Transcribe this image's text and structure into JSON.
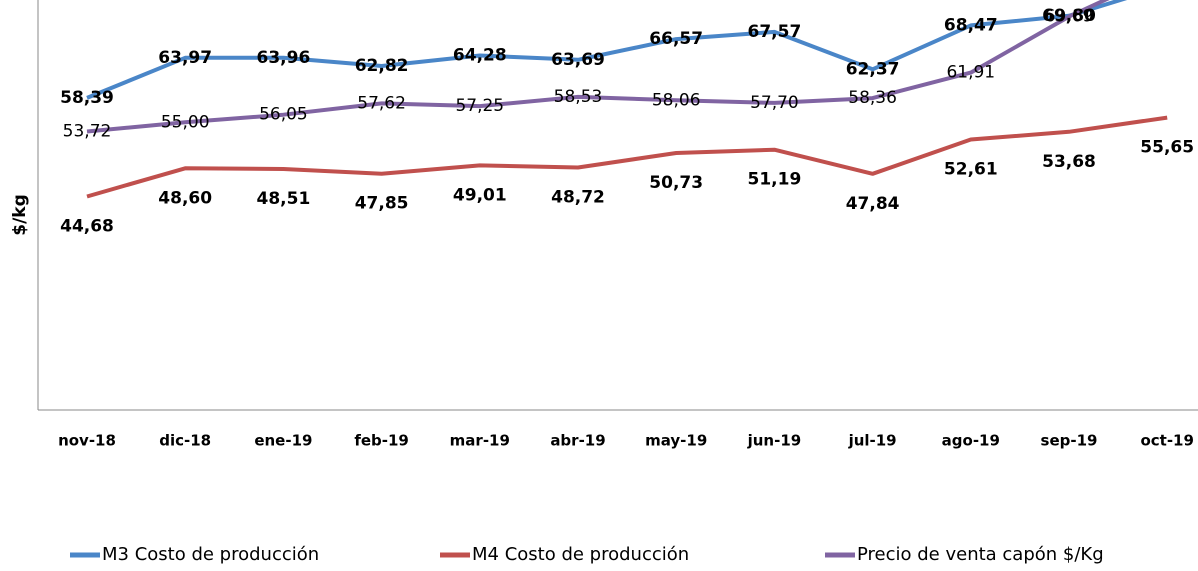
{
  "chart_data": {
    "type": "line",
    "y_label": "$/kg",
    "categories": [
      "nov-18",
      "dic-18",
      "ene-19",
      "feb-19",
      "mar-19",
      "abr-19",
      "may-19",
      "jun-19",
      "jul-19",
      "ago-19",
      "sep-19",
      "oct-19"
    ],
    "ylim": [
      15,
      72
    ],
    "series": [
      {
        "name": "M3 Costo de producción",
        "color": "#4a86c8",
        "values": [
          58.39,
          63.97,
          63.96,
          62.82,
          64.28,
          63.69,
          66.57,
          67.57,
          62.37,
          68.47,
          69.8,
          74
        ],
        "value_labels": [
          "58,39",
          "63,97",
          "63,96",
          "62,82",
          "64,28",
          "63,69",
          "66,57",
          "67,57",
          "62,37",
          "68,47",
          "69,80",
          null
        ]
      },
      {
        "name": "M4 Costo de producción",
        "color": "#c0504d",
        "values": [
          44.68,
          48.6,
          48.51,
          47.85,
          49.01,
          48.72,
          50.73,
          51.19,
          47.84,
          52.61,
          53.68,
          55.65
        ],
        "value_labels": [
          "44,68",
          "48,60",
          "48,51",
          "47,85",
          "49,01",
          "48,72",
          "50,73",
          "51,19",
          "47,84",
          "52,61",
          "53,68",
          "55,65"
        ]
      },
      {
        "name": "Precio de venta capón $/Kg",
        "color": "#8064a2",
        "values": [
          53.72,
          55.0,
          56.05,
          57.62,
          57.25,
          58.53,
          58.06,
          57.7,
          58.36,
          61.91,
          69.69,
          76
        ],
        "value_labels": [
          "53,72",
          "55,00",
          "56,05",
          "57,62",
          "57,25",
          "58,53",
          "58,06",
          "57,70",
          "58,36",
          "61,91",
          "69,69",
          null
        ]
      }
    ]
  }
}
